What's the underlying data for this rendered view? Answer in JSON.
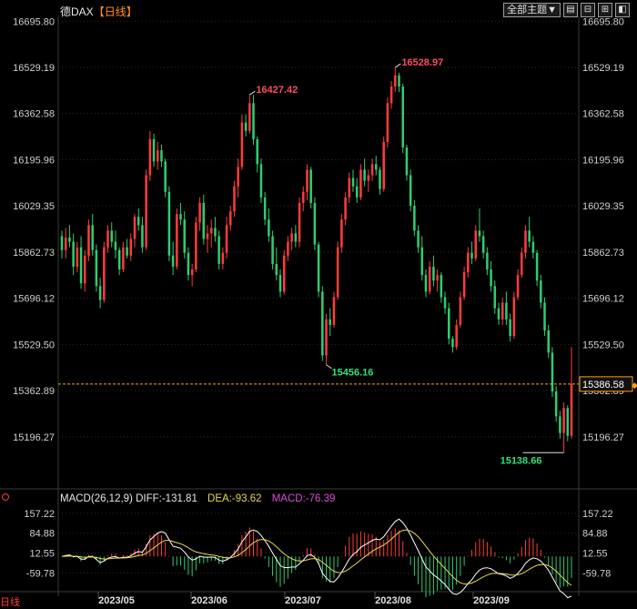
{
  "chart_title": {
    "symbol": "德DAX",
    "period": "【日线】"
  },
  "toolbar": {
    "main_select": "全部主题▼",
    "icons": [
      "layout-icon",
      "split-icon",
      "indicator-icon",
      "expand-icon"
    ]
  },
  "colors": {
    "up": "#ff3b3b",
    "down": "#2fcc71",
    "grid": "#2a2a2a",
    "axis_text": "#cfcfcf",
    "price_line": "#ff9f1c",
    "diff": "#ffffff",
    "dea": "#e6d84a",
    "macd": "#d850d8"
  },
  "chart_data": [
    {
      "type": "candlestick",
      "title": "德DAX【日线】",
      "ylim": [
        15130,
        16700
      ],
      "y_ticks": [
        "16695.80",
        "16529.19",
        "16362.58",
        "16195.96",
        "16029.35",
        "15862.73",
        "15696.12",
        "15529.50",
        "15362.89",
        "15196.27"
      ],
      "x_labels": [
        "2023/05",
        "2023/06",
        "2023/07",
        "2023/08",
        "2023/09"
      ],
      "annotations": [
        {
          "text": "16427.42",
          "kind": "high"
        },
        {
          "text": "16528.97",
          "kind": "high"
        },
        {
          "text": "15456.16",
          "kind": "low"
        },
        {
          "text": "15138.66",
          "kind": "low"
        }
      ],
      "current_price": "15386.58",
      "candles": [
        [
          15920,
          15940,
          15840,
          15870
        ],
        [
          15870,
          15950,
          15840,
          15915
        ],
        [
          15915,
          15960,
          15880,
          15900
        ],
        [
          15900,
          15930,
          15780,
          15810
        ],
        [
          15810,
          15900,
          15790,
          15880
        ],
        [
          15880,
          15920,
          15730,
          15750
        ],
        [
          15750,
          15870,
          15720,
          15850
        ],
        [
          15850,
          15980,
          15830,
          15960
        ],
        [
          15960,
          16000,
          15850,
          15870
        ],
        [
          15870,
          15890,
          15720,
          15740
        ],
        [
          15740,
          15770,
          15660,
          15690
        ],
        [
          15690,
          15900,
          15680,
          15880
        ],
        [
          15880,
          15960,
          15860,
          15940
        ],
        [
          15940,
          15970,
          15880,
          15900
        ],
        [
          15900,
          15940,
          15840,
          15870
        ],
        [
          15870,
          15880,
          15780,
          15800
        ],
        [
          15800,
          15900,
          15790,
          15880
        ],
        [
          15880,
          15910,
          15840,
          15850
        ],
        [
          15850,
          15930,
          15830,
          15910
        ],
        [
          15910,
          16000,
          15880,
          15990
        ],
        [
          15990,
          16020,
          15940,
          15960
        ],
        [
          15960,
          15990,
          15860,
          15880
        ],
        [
          15880,
          16160,
          15870,
          16140
        ],
        [
          16140,
          16300,
          16120,
          16270
        ],
        [
          16270,
          16290,
          16170,
          16190
        ],
        [
          16190,
          16260,
          16160,
          16230
        ],
        [
          16230,
          16250,
          16170,
          16190
        ],
        [
          16190,
          16200,
          16060,
          16080
        ],
        [
          16080,
          16100,
          15830,
          15850
        ],
        [
          15850,
          15900,
          15780,
          15810
        ],
        [
          15810,
          16020,
          15800,
          16000
        ],
        [
          16000,
          16040,
          15960,
          15980
        ],
        [
          15980,
          16010,
          15840,
          15860
        ],
        [
          15860,
          15880,
          15760,
          15780
        ],
        [
          15780,
          15820,
          15740,
          15800
        ],
        [
          15800,
          15990,
          15790,
          15970
        ],
        [
          15970,
          16060,
          15940,
          16040
        ],
        [
          16040,
          16070,
          15890,
          15910
        ],
        [
          15910,
          15960,
          15860,
          15930
        ],
        [
          15930,
          15980,
          15880,
          15950
        ],
        [
          15950,
          15990,
          15900,
          15920
        ],
        [
          15920,
          15940,
          15800,
          15820
        ],
        [
          15820,
          15880,
          15800,
          15860
        ],
        [
          15860,
          15990,
          15840,
          15960
        ],
        [
          15960,
          16030,
          15940,
          16010
        ],
        [
          16010,
          16120,
          15990,
          16100
        ],
        [
          16100,
          16200,
          16060,
          16170
        ],
        [
          16170,
          16360,
          16160,
          16330
        ],
        [
          16330,
          16360,
          16280,
          16300
        ],
        [
          16300,
          16430,
          16290,
          16400
        ],
        [
          16400,
          16430,
          16250,
          16270
        ],
        [
          16270,
          16280,
          16150,
          16180
        ],
        [
          16180,
          16200,
          16040,
          16060
        ],
        [
          16060,
          16080,
          15960,
          15980
        ],
        [
          15980,
          16020,
          15900,
          15920
        ],
        [
          15920,
          15940,
          15800,
          15820
        ],
        [
          15820,
          15880,
          15760,
          15780
        ],
        [
          15780,
          15800,
          15700,
          15720
        ],
        [
          15720,
          15870,
          15710,
          15850
        ],
        [
          15850,
          15920,
          15830,
          15900
        ],
        [
          15900,
          15950,
          15870,
          15930
        ],
        [
          15930,
          15960,
          15880,
          15900
        ],
        [
          15900,
          16060,
          15880,
          16040
        ],
        [
          16040,
          16100,
          16010,
          16080
        ],
        [
          16080,
          16180,
          16050,
          16160
        ],
        [
          16160,
          16170,
          16020,
          16040
        ],
        [
          16040,
          16060,
          15870,
          15890
        ],
        [
          15890,
          15900,
          15700,
          15720
        ],
        [
          15720,
          15740,
          15470,
          15490
        ],
        [
          15490,
          15640,
          15456,
          15620
        ],
        [
          15620,
          15660,
          15560,
          15600
        ],
        [
          15600,
          15720,
          15590,
          15700
        ],
        [
          15700,
          15900,
          15690,
          15880
        ],
        [
          15880,
          16000,
          15860,
          15980
        ],
        [
          15980,
          16080,
          15960,
          16060
        ],
        [
          16060,
          16150,
          16040,
          16130
        ],
        [
          16130,
          16160,
          16080,
          16100
        ],
        [
          16100,
          16130,
          16040,
          16060
        ],
        [
          16060,
          16180,
          16050,
          16160
        ],
        [
          16160,
          16200,
          16100,
          16120
        ],
        [
          16120,
          16160,
          16080,
          16140
        ],
        [
          16140,
          16200,
          16120,
          16180
        ],
        [
          16180,
          16210,
          16140,
          16160
        ],
        [
          16160,
          16170,
          16070,
          16090
        ],
        [
          16090,
          16280,
          16080,
          16260
        ],
        [
          16260,
          16420,
          16240,
          16400
        ],
        [
          16400,
          16480,
          16380,
          16460
        ],
        [
          16460,
          16529,
          16440,
          16500
        ],
        [
          16500,
          16510,
          16440,
          16460
        ],
        [
          16460,
          16470,
          16220,
          16240
        ],
        [
          16240,
          16250,
          16120,
          16140
        ],
        [
          16140,
          16160,
          16010,
          16030
        ],
        [
          16030,
          16050,
          15920,
          15940
        ],
        [
          15940,
          15960,
          15860,
          15880
        ],
        [
          15880,
          15920,
          15760,
          15780
        ],
        [
          15780,
          15800,
          15700,
          15720
        ],
        [
          15720,
          15830,
          15710,
          15810
        ],
        [
          15810,
          15850,
          15740,
          15760
        ],
        [
          15760,
          15800,
          15720,
          15780
        ],
        [
          15780,
          15790,
          15680,
          15700
        ],
        [
          15700,
          15720,
          15640,
          15660
        ],
        [
          15660,
          15680,
          15530,
          15550
        ],
        [
          15550,
          15560,
          15500,
          15520
        ],
        [
          15520,
          15620,
          15510,
          15600
        ],
        [
          15600,
          15720,
          15590,
          15700
        ],
        [
          15700,
          15810,
          15690,
          15790
        ],
        [
          15790,
          15880,
          15770,
          15860
        ],
        [
          15860,
          15900,
          15820,
          15840
        ],
        [
          15840,
          15960,
          15830,
          15940
        ],
        [
          15940,
          16020,
          15900,
          15920
        ],
        [
          15920,
          15940,
          15840,
          15860
        ],
        [
          15860,
          15880,
          15780,
          15800
        ],
        [
          15800,
          15830,
          15720,
          15740
        ],
        [
          15740,
          15760,
          15640,
          15660
        ],
        [
          15660,
          15680,
          15600,
          15620
        ],
        [
          15620,
          15700,
          15600,
          15680
        ],
        [
          15680,
          15720,
          15600,
          15620
        ],
        [
          15620,
          15640,
          15540,
          15560
        ],
        [
          15560,
          15720,
          15550,
          15700
        ],
        [
          15700,
          15800,
          15690,
          15780
        ],
        [
          15780,
          15880,
          15770,
          15860
        ],
        [
          15860,
          15960,
          15840,
          15940
        ],
        [
          15940,
          15990,
          15880,
          15900
        ],
        [
          15900,
          15920,
          15840,
          15860
        ],
        [
          15860,
          15870,
          15740,
          15760
        ],
        [
          15760,
          15780,
          15660,
          15680
        ],
        [
          15680,
          15700,
          15560,
          15580
        ],
        [
          15580,
          15600,
          15480,
          15500
        ],
        [
          15500,
          15520,
          15340,
          15360
        ],
        [
          15360,
          15380,
          15250,
          15270
        ],
        [
          15270,
          15290,
          15190,
          15210
        ],
        [
          15210,
          15320,
          15139,
          15300
        ],
        [
          15300,
          15310,
          15180,
          15200
        ],
        [
          15200,
          15520,
          15190,
          15387
        ]
      ]
    },
    {
      "type": "macd",
      "title": "MACD(26,12,9)",
      "diff_label": "DIFF:-131.81",
      "dea_label": "DEA:-93.62",
      "macd_label": "MACD:-76.39",
      "ylim": [
        -95,
        170
      ],
      "y_ticks": [
        "157.22",
        "84.88",
        "12.55",
        "-59.78"
      ]
    }
  ],
  "bottom_label": "日线"
}
